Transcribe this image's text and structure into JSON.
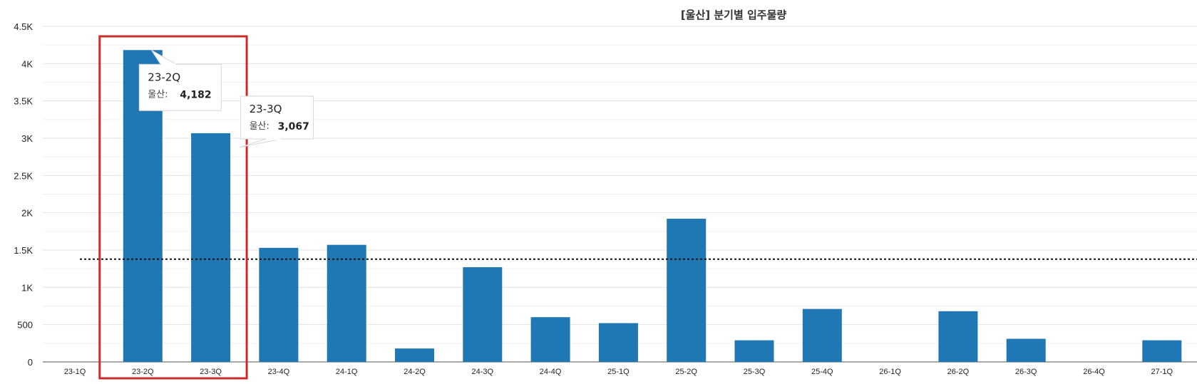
{
  "chart_data": {
    "type": "bar",
    "title": "[울산] 분기별 입주물량",
    "categories": [
      "23-1Q",
      "23-2Q",
      "23-3Q",
      "23-4Q",
      "24-1Q",
      "24-2Q",
      "24-3Q",
      "24-4Q",
      "25-1Q",
      "25-2Q",
      "25-3Q",
      "25-4Q",
      "26-1Q",
      "26-2Q",
      "26-3Q",
      "26-4Q",
      "27-1Q"
    ],
    "series": [
      {
        "name": "울산",
        "values": [
          0,
          4182,
          3067,
          1530,
          1570,
          180,
          1270,
          600,
          520,
          1920,
          290,
          710,
          0,
          680,
          310,
          0,
          290
        ]
      }
    ],
    "ylim": [
      0,
      4500
    ],
    "yticks": [
      0,
      500,
      1000,
      1500,
      2000,
      2500,
      3000,
      3500,
      4000,
      4500
    ],
    "ytick_labels": [
      "0",
      "500",
      "1K",
      "1.5K",
      "2K",
      "2.5K",
      "3K",
      "3.5K",
      "4K",
      "4.5K"
    ],
    "reference_line": {
      "value": 1378,
      "style": "dotted"
    },
    "grid": true,
    "bar_color": "#1f77b4",
    "highlight_box_color": "#cc2b2b",
    "highlighted_categories": [
      "23-2Q",
      "23-3Q"
    ],
    "tooltips": [
      {
        "category": "23-2Q",
        "series_label": "울산:",
        "value_label": "4,182"
      },
      {
        "category": "23-3Q",
        "series_label": "울산:",
        "value_label": "3,067"
      }
    ]
  }
}
